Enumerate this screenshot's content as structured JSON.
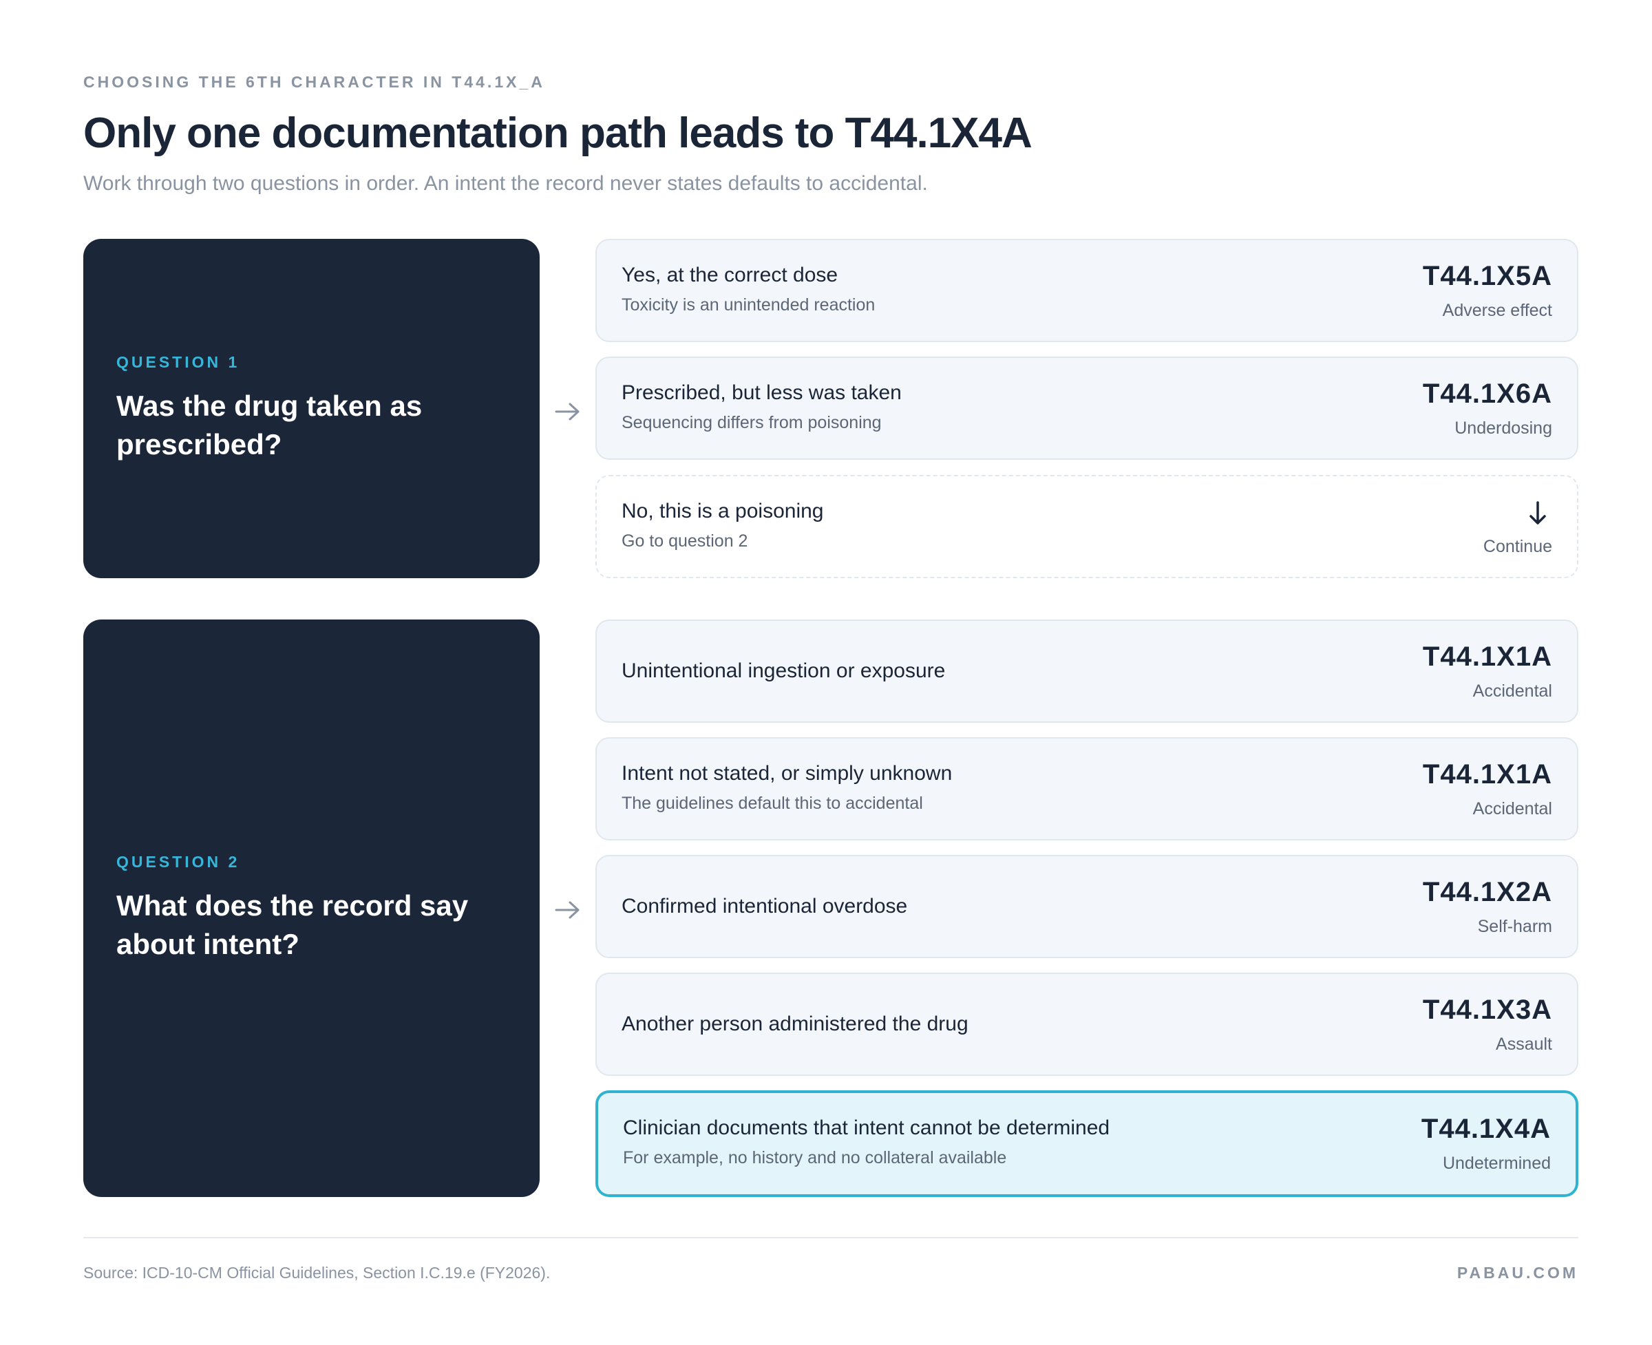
{
  "header": {
    "eyebrow": "CHOOSING THE 6TH CHARACTER IN T44.1X_A",
    "title": "Only one documentation path leads to T44.1X4A",
    "subtitle": "Work through two questions in order. An intent the record never states defaults to accidental."
  },
  "question1": {
    "label": "QUESTION 1",
    "text": "Was the drug taken as prescribed?",
    "options": [
      {
        "option": "Yes, at the correct dose",
        "note": "Toxicity is an unintended reaction",
        "code": "T44.1X5A",
        "category": "Adverse effect"
      },
      {
        "option": "Prescribed, but less was taken",
        "note": "Sequencing differs from poisoning",
        "code": "T44.1X6A",
        "category": "Underdosing"
      },
      {
        "option": "No, this is a poisoning",
        "note": "Go to question 2",
        "action": "Continue",
        "icon": "arrow-down-icon"
      }
    ]
  },
  "question2": {
    "label": "QUESTION 2",
    "text": "What does the record say about intent?",
    "options": [
      {
        "option": "Unintentional ingestion or exposure",
        "code": "T44.1X1A",
        "category": "Accidental"
      },
      {
        "option": "Intent not stated, or simply unknown",
        "note": "The guidelines default this to accidental",
        "code": "T44.1X1A",
        "category": "Accidental"
      },
      {
        "option": "Confirmed intentional overdose",
        "code": "T44.1X2A",
        "category": "Self-harm"
      },
      {
        "option": "Another person administered the drug",
        "code": "T44.1X3A",
        "category": "Assault"
      },
      {
        "option": "Clinician documents that intent cannot be determined",
        "note": "For example, no history and no collateral available",
        "code": "T44.1X4A",
        "category": "Undetermined",
        "highlighted": true
      }
    ]
  },
  "footer": {
    "source": "Source: ICD-10-CM Official Guidelines, Section I.C.19.e (FY2026).",
    "brand": "PABAU.COM"
  },
  "colors": {
    "panel": "#1c2639",
    "accent": "#36b6d9",
    "highlight_border": "#2fb3d0",
    "highlight_fill": "#e3f5fb",
    "card_fill": "#f3f7fb"
  }
}
